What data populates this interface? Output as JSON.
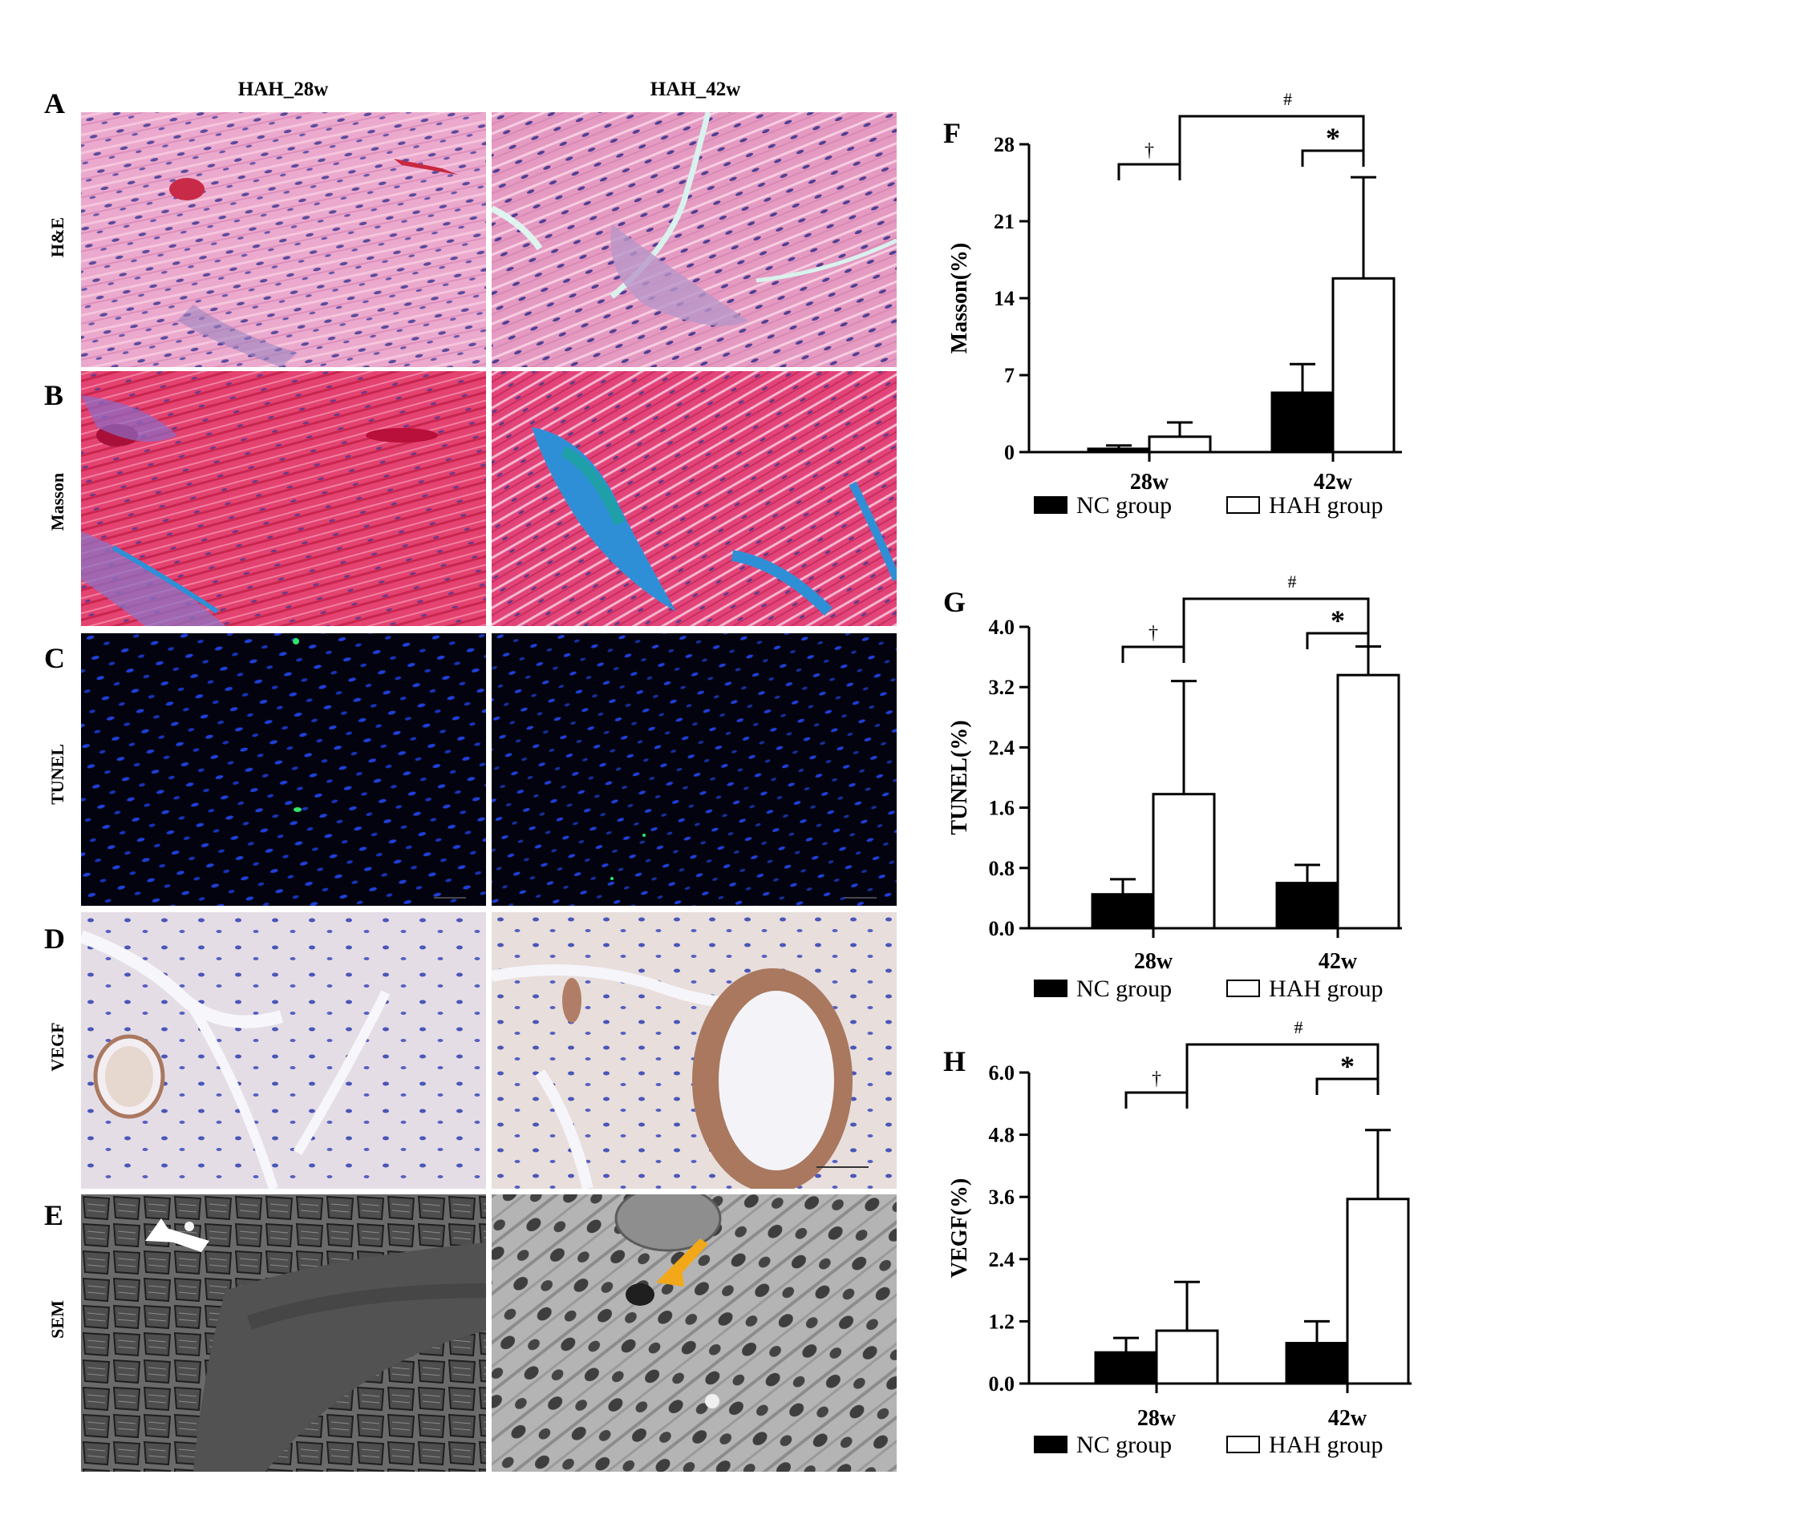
{
  "columns": [
    "HAH_28w",
    "HAH_42w"
  ],
  "rows": [
    {
      "letter": "A",
      "label": "H&E"
    },
    {
      "letter": "B",
      "label": "Masson"
    },
    {
      "letter": "C",
      "label": "TUNEL"
    },
    {
      "letter": "D",
      "label": "VEGF"
    },
    {
      "letter": "E",
      "label": "SEM"
    }
  ],
  "colors": {
    "he_bg": "#e9a3c8",
    "he_nuclei": "#5b4a9c",
    "masson_bg": "#e0406a",
    "masson_blue": "#2f8fd6",
    "tunel_bg": "#03030f",
    "tunel_nuclei": "#1f3fd8",
    "tunel_green": "#2ee66b",
    "vegf_bg": "#e7e3ec",
    "vegf_brown": "#a9785f",
    "sem_bg": "#5a5a5a",
    "sem_dark": "#2a2a2a",
    "white_arrow": "#ffffff",
    "yellow_arrow": "#f2a818",
    "nc_fill": "#000000",
    "hah_fill": "#ffffff"
  },
  "chart_data": [
    {
      "panel": "F",
      "type": "bar",
      "ylabel": "Masson(%)",
      "categories": [
        "28w",
        "42w"
      ],
      "ylim": [
        0,
        28
      ],
      "yticks": [
        "0",
        "7",
        "14",
        "21",
        "28"
      ],
      "series": [
        {
          "name": "NC group",
          "values": [
            0.3,
            5.4
          ],
          "errors": [
            0.3,
            2.6
          ]
        },
        {
          "name": "HAH group",
          "values": [
            1.4,
            15.8
          ],
          "errors": [
            1.3,
            9.2
          ]
        }
      ],
      "annotations": {
        "dagger": "†",
        "star": "*",
        "hash": "#"
      }
    },
    {
      "panel": "G",
      "type": "bar",
      "ylabel": "TUNEL(%)",
      "categories": [
        "28w",
        "42w"
      ],
      "ylim": [
        0,
        4.0
      ],
      "yticks": [
        "0.0",
        "0.8",
        "1.6",
        "2.4",
        "3.2",
        "4.0"
      ],
      "series": [
        {
          "name": "NC group",
          "values": [
            0.45,
            0.6
          ],
          "errors": [
            0.2,
            0.24
          ]
        },
        {
          "name": "HAH group",
          "values": [
            1.78,
            3.36
          ],
          "errors": [
            1.5,
            0.38
          ]
        }
      ],
      "annotations": {
        "dagger": "†",
        "star": "*",
        "hash": "#"
      }
    },
    {
      "panel": "H",
      "type": "bar",
      "ylabel": "VEGF(%)",
      "categories": [
        "28w",
        "42w"
      ],
      "ylim": [
        0,
        6.0
      ],
      "yticks": [
        "0.0",
        "1.2",
        "2.4",
        "3.6",
        "4.8",
        "6.0"
      ],
      "series": [
        {
          "name": "NC group",
          "values": [
            0.6,
            0.78
          ],
          "errors": [
            0.28,
            0.42
          ]
        },
        {
          "name": "HAH group",
          "values": [
            1.02,
            3.56
          ],
          "errors": [
            0.94,
            1.33
          ]
        }
      ],
      "annotations": {
        "dagger": "†",
        "star": "*",
        "hash": "#"
      }
    }
  ]
}
